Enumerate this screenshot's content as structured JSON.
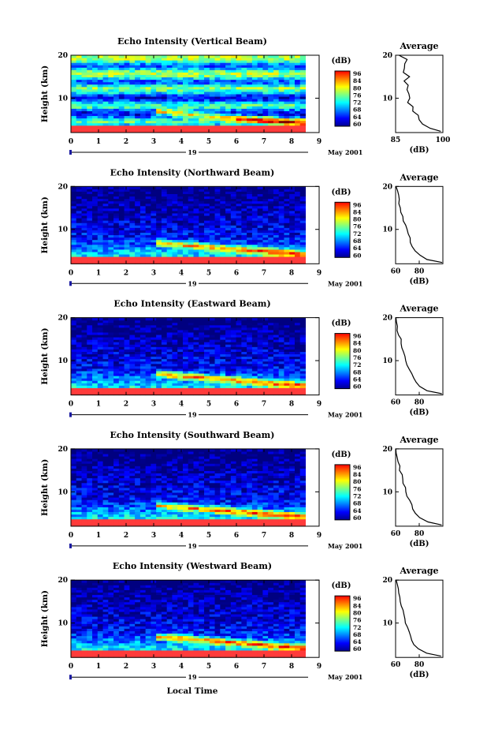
{
  "figure": {
    "xlabel": "Local Time",
    "date_day": "19",
    "date_month": "May",
    "date_year": "2001",
    "colorbar_unit": "(dB)",
    "colorbar_ticks": [
      "96",
      "84",
      "80",
      "76",
      "72",
      "68",
      "64",
      "60"
    ],
    "colors": {
      "red": "#ff3b3b",
      "jet_stops": [
        "#00008f",
        "#0000ff",
        "#0080ff",
        "#00ffff",
        "#80ff80",
        "#ffff00",
        "#ff8000",
        "#ff0000"
      ]
    }
  },
  "chart_data": [
    {
      "type": "heatmap",
      "title": "Echo Intensity (Vertical Beam)",
      "ylabel": "Height (km)",
      "xlim": [
        0,
        9
      ],
      "ylim": [
        2,
        20
      ],
      "x_ticks": [
        "0",
        "1",
        "2",
        "3",
        "4",
        "5",
        "6",
        "7",
        "8",
        "9"
      ],
      "y_ticks": [
        "20",
        "10"
      ],
      "data_x_range": [
        0,
        8.5
      ],
      "colorbar_range": [
        60,
        96
      ],
      "ground_layer_top_km": 3.5,
      "descending_layer": {
        "start_time": 3,
        "start_km": 7,
        "end_time": 8.5,
        "end_km": 4.2
      },
      "average_profile": {
        "title": "Average",
        "xlim": [
          85,
          100
        ],
        "x_ticks": [
          "85",
          "100"
        ],
        "y_ticks": [
          "20",
          "10"
        ],
        "xlabel": "(dB)",
        "height_km": [
          2.3,
          3,
          4,
          5,
          6,
          7,
          8,
          9,
          10,
          11,
          12,
          13,
          14,
          15,
          16,
          17,
          18,
          19,
          20
        ],
        "value_db": [
          99.5,
          96,
          94,
          92.5,
          92,
          91,
          90,
          89.5,
          89,
          88.5,
          89,
          88.5,
          88,
          89,
          88,
          88.5,
          87.5,
          88,
          86
        ]
      }
    },
    {
      "type": "heatmap",
      "title": "Echo Intensity (Northward Beam)",
      "ylabel": "Height (km)",
      "xlim": [
        0,
        9
      ],
      "ylim": [
        2,
        20
      ],
      "x_ticks": [
        "0",
        "1",
        "2",
        "3",
        "4",
        "5",
        "6",
        "7",
        "8",
        "9"
      ],
      "y_ticks": [
        "20",
        "10"
      ],
      "data_x_range": [
        0,
        8.5
      ],
      "colorbar_range": [
        60,
        96
      ],
      "ground_layer_top_km": 3.5,
      "descending_layer": {
        "start_time": 3,
        "start_km": 7,
        "end_time": 8.5,
        "end_km": 4.2
      },
      "average_profile": {
        "title": "Average",
        "xlim": [
          60,
          100
        ],
        "x_ticks": [
          "60",
          "80"
        ],
        "y_ticks": [
          "20",
          "10"
        ],
        "xlabel": "(dB)",
        "height_km": [
          2.3,
          3,
          4,
          5,
          6,
          7,
          8,
          9,
          10,
          11,
          12,
          13,
          14,
          15,
          16,
          17,
          18,
          19,
          20
        ],
        "value_db": [
          99,
          86,
          80,
          76,
          74,
          73,
          72,
          70,
          69,
          68,
          67,
          66,
          65,
          64,
          63,
          63,
          62,
          62,
          60
        ]
      }
    },
    {
      "type": "heatmap",
      "title": "Echo Intensity (Eastward Beam)",
      "ylabel": "Height (km)",
      "xlim": [
        0,
        9
      ],
      "ylim": [
        2,
        20
      ],
      "x_ticks": [
        "0",
        "1",
        "2",
        "3",
        "4",
        "5",
        "6",
        "7",
        "8",
        "9"
      ],
      "y_ticks": [
        "20",
        "10"
      ],
      "data_x_range": [
        0,
        8.5
      ],
      "colorbar_range": [
        60,
        96
      ],
      "ground_layer_top_km": 3.5,
      "descending_layer": {
        "start_time": 3,
        "start_km": 7,
        "end_time": 8.5,
        "end_km": 4.2
      },
      "average_profile": {
        "title": "Average",
        "xlim": [
          60,
          100
        ],
        "x_ticks": [
          "60",
          "80"
        ],
        "y_ticks": [
          "20",
          "10"
        ],
        "xlabel": "(dB)",
        "height_km": [
          2.3,
          3,
          4,
          5,
          6,
          7,
          8,
          9,
          10,
          11,
          12,
          13,
          14,
          15,
          16,
          17,
          18,
          19,
          20
        ],
        "value_db": [
          99,
          87,
          81,
          77,
          75,
          74,
          72,
          70,
          69,
          68,
          67,
          66,
          65,
          64,
          63,
          62,
          62,
          61,
          60
        ]
      }
    },
    {
      "type": "heatmap",
      "title": "Echo Intensity (Southward Beam)",
      "ylabel": "Height (km)",
      "xlim": [
        0,
        9
      ],
      "ylim": [
        2,
        20
      ],
      "x_ticks": [
        "0",
        "1",
        "2",
        "3",
        "4",
        "5",
        "6",
        "7",
        "8",
        "9"
      ],
      "y_ticks": [
        "20",
        "10"
      ],
      "data_x_range": [
        0,
        8.5
      ],
      "colorbar_range": [
        60,
        96
      ],
      "ground_layer_top_km": 3.5,
      "descending_layer": {
        "start_time": 3,
        "start_km": 7,
        "end_time": 8.5,
        "end_km": 4.2
      },
      "average_profile": {
        "title": "Average",
        "xlim": [
          60,
          100
        ],
        "x_ticks": [
          "60",
          "80"
        ],
        "y_ticks": [
          "20",
          "10"
        ],
        "xlabel": "(dB)",
        "height_km": [
          2.3,
          3,
          4,
          5,
          6,
          7,
          8,
          9,
          10,
          11,
          12,
          13,
          14,
          15,
          16,
          17,
          18,
          19,
          20
        ],
        "value_db": [
          99,
          87,
          81,
          77,
          75,
          74,
          72,
          70,
          69,
          68,
          67,
          66,
          65,
          64,
          63,
          62,
          62,
          61,
          60
        ]
      }
    },
    {
      "type": "heatmap",
      "title": "Echo Intensity (Westward Beam)",
      "ylabel": "Height (km)",
      "xlim": [
        0,
        9
      ],
      "ylim": [
        2,
        20
      ],
      "x_ticks": [
        "0",
        "1",
        "2",
        "3",
        "4",
        "5",
        "6",
        "7",
        "8",
        "9"
      ],
      "y_ticks": [
        "20",
        "10"
      ],
      "data_x_range": [
        0,
        8.5
      ],
      "colorbar_range": [
        60,
        96
      ],
      "ground_layer_top_km": 3.5,
      "descending_layer": {
        "start_time": 3,
        "start_km": 7,
        "end_time": 8.5,
        "end_km": 4.2
      },
      "average_profile": {
        "title": "Average",
        "xlim": [
          60,
          100
        ],
        "x_ticks": [
          "60",
          "80"
        ],
        "y_ticks": [
          "20",
          "10"
        ],
        "xlabel": "(dB)",
        "height_km": [
          2.3,
          3,
          4,
          5,
          6,
          7,
          8,
          9,
          10,
          11,
          12,
          13,
          14,
          15,
          16,
          17,
          18,
          19,
          20
        ],
        "value_db": [
          99,
          86,
          80,
          76,
          74,
          73,
          72,
          70,
          69,
          68,
          67,
          66,
          65,
          64,
          63,
          63,
          62,
          62,
          60
        ]
      }
    }
  ]
}
